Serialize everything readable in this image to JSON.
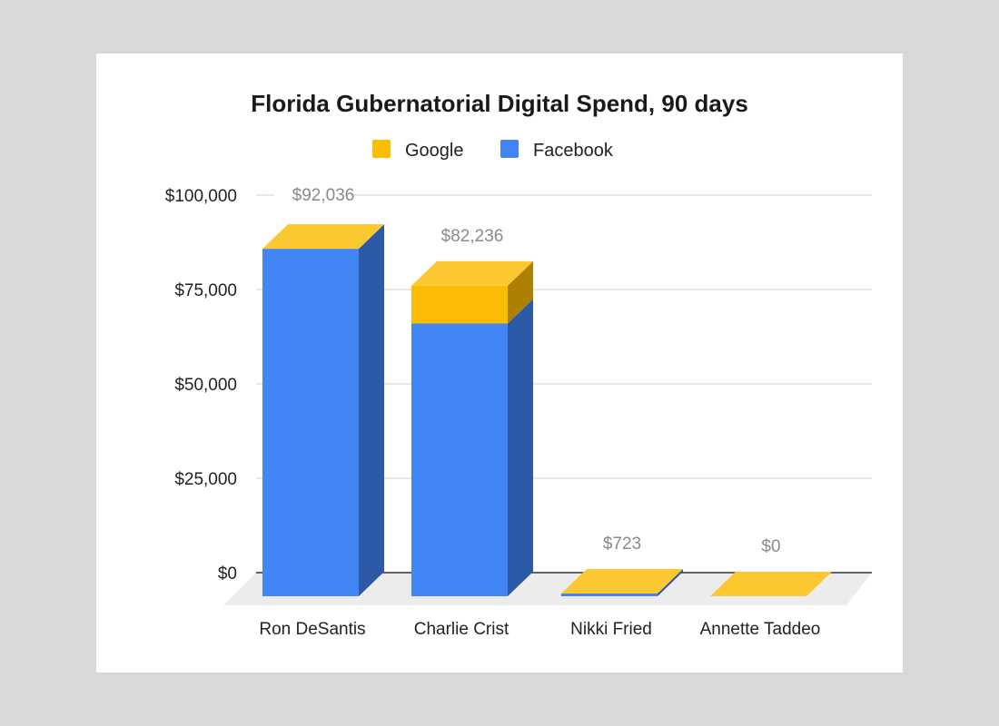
{
  "chart_data": {
    "type": "bar",
    "stacked": true,
    "style": "3d",
    "title": "Florida Gubernatorial Digital Spend, 90 days",
    "xlabel": "",
    "ylabel": "",
    "categories": [
      "Ron DeSantis",
      "Charlie Crist",
      "Nikki Fried",
      "Annette Taddeo"
    ],
    "series": [
      {
        "name": "Facebook",
        "color": "#4285f4",
        "values": [
          92036,
          72236,
          723,
          0
        ]
      },
      {
        "name": "Google",
        "color": "#fbbc04",
        "values": [
          0,
          10000,
          0,
          0
        ]
      }
    ],
    "totals": [
      "$92,036",
      "$82,236",
      "$723",
      "$0"
    ],
    "y_ticks": [
      {
        "value": 0,
        "label": "$0"
      },
      {
        "value": 25000,
        "label": "$25,000"
      },
      {
        "value": 50000,
        "label": "$50,000"
      },
      {
        "value": 75000,
        "label": "$75,000"
      },
      {
        "value": 100000,
        "label": "$100,000"
      }
    ],
    "ylim": [
      0,
      100000
    ],
    "legend": {
      "position": "top",
      "entries": [
        "Google",
        "Facebook"
      ]
    },
    "grid": true
  }
}
